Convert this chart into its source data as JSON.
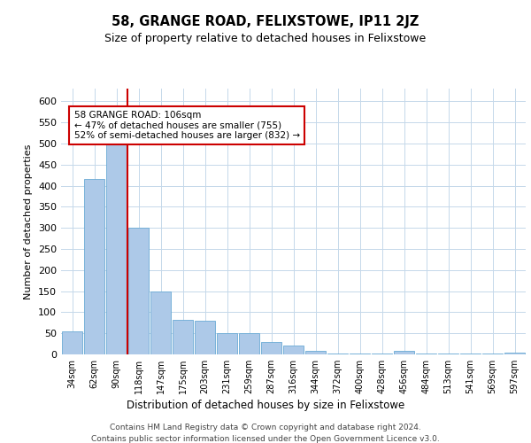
{
  "title": "58, GRANGE ROAD, FELIXSTOWE, IP11 2JZ",
  "subtitle": "Size of property relative to detached houses in Felixstowe",
  "xlabel": "Distribution of detached houses by size in Felixstowe",
  "ylabel": "Number of detached properties",
  "categories": [
    "34sqm",
    "62sqm",
    "90sqm",
    "118sqm",
    "147sqm",
    "175sqm",
    "203sqm",
    "231sqm",
    "259sqm",
    "287sqm",
    "316sqm",
    "344sqm",
    "372sqm",
    "400sqm",
    "428sqm",
    "456sqm",
    "484sqm",
    "513sqm",
    "541sqm",
    "569sqm",
    "597sqm"
  ],
  "values": [
    55,
    415,
    520,
    300,
    150,
    82,
    80,
    50,
    50,
    30,
    20,
    8,
    2,
    2,
    2,
    8,
    2,
    2,
    2,
    2,
    5
  ],
  "bar_color": "#adc9e8",
  "bar_edge_color": "#6aaad4",
  "vline_color": "#cc0000",
  "vline_pos": 2.5,
  "annotation_text": "58 GRANGE ROAD: 106sqm\n← 47% of detached houses are smaller (755)\n52% of semi-detached houses are larger (832) →",
  "annotation_box_color": "#ffffff",
  "annotation_box_edge": "#cc0000",
  "ylim": [
    0,
    630
  ],
  "yticks": [
    0,
    50,
    100,
    150,
    200,
    250,
    300,
    350,
    400,
    450,
    500,
    550,
    600
  ],
  "background_color": "#ffffff",
  "grid_color": "#c5d8ea",
  "footer_line1": "Contains HM Land Registry data © Crown copyright and database right 2024.",
  "footer_line2": "Contains public sector information licensed under the Open Government Licence v3.0."
}
